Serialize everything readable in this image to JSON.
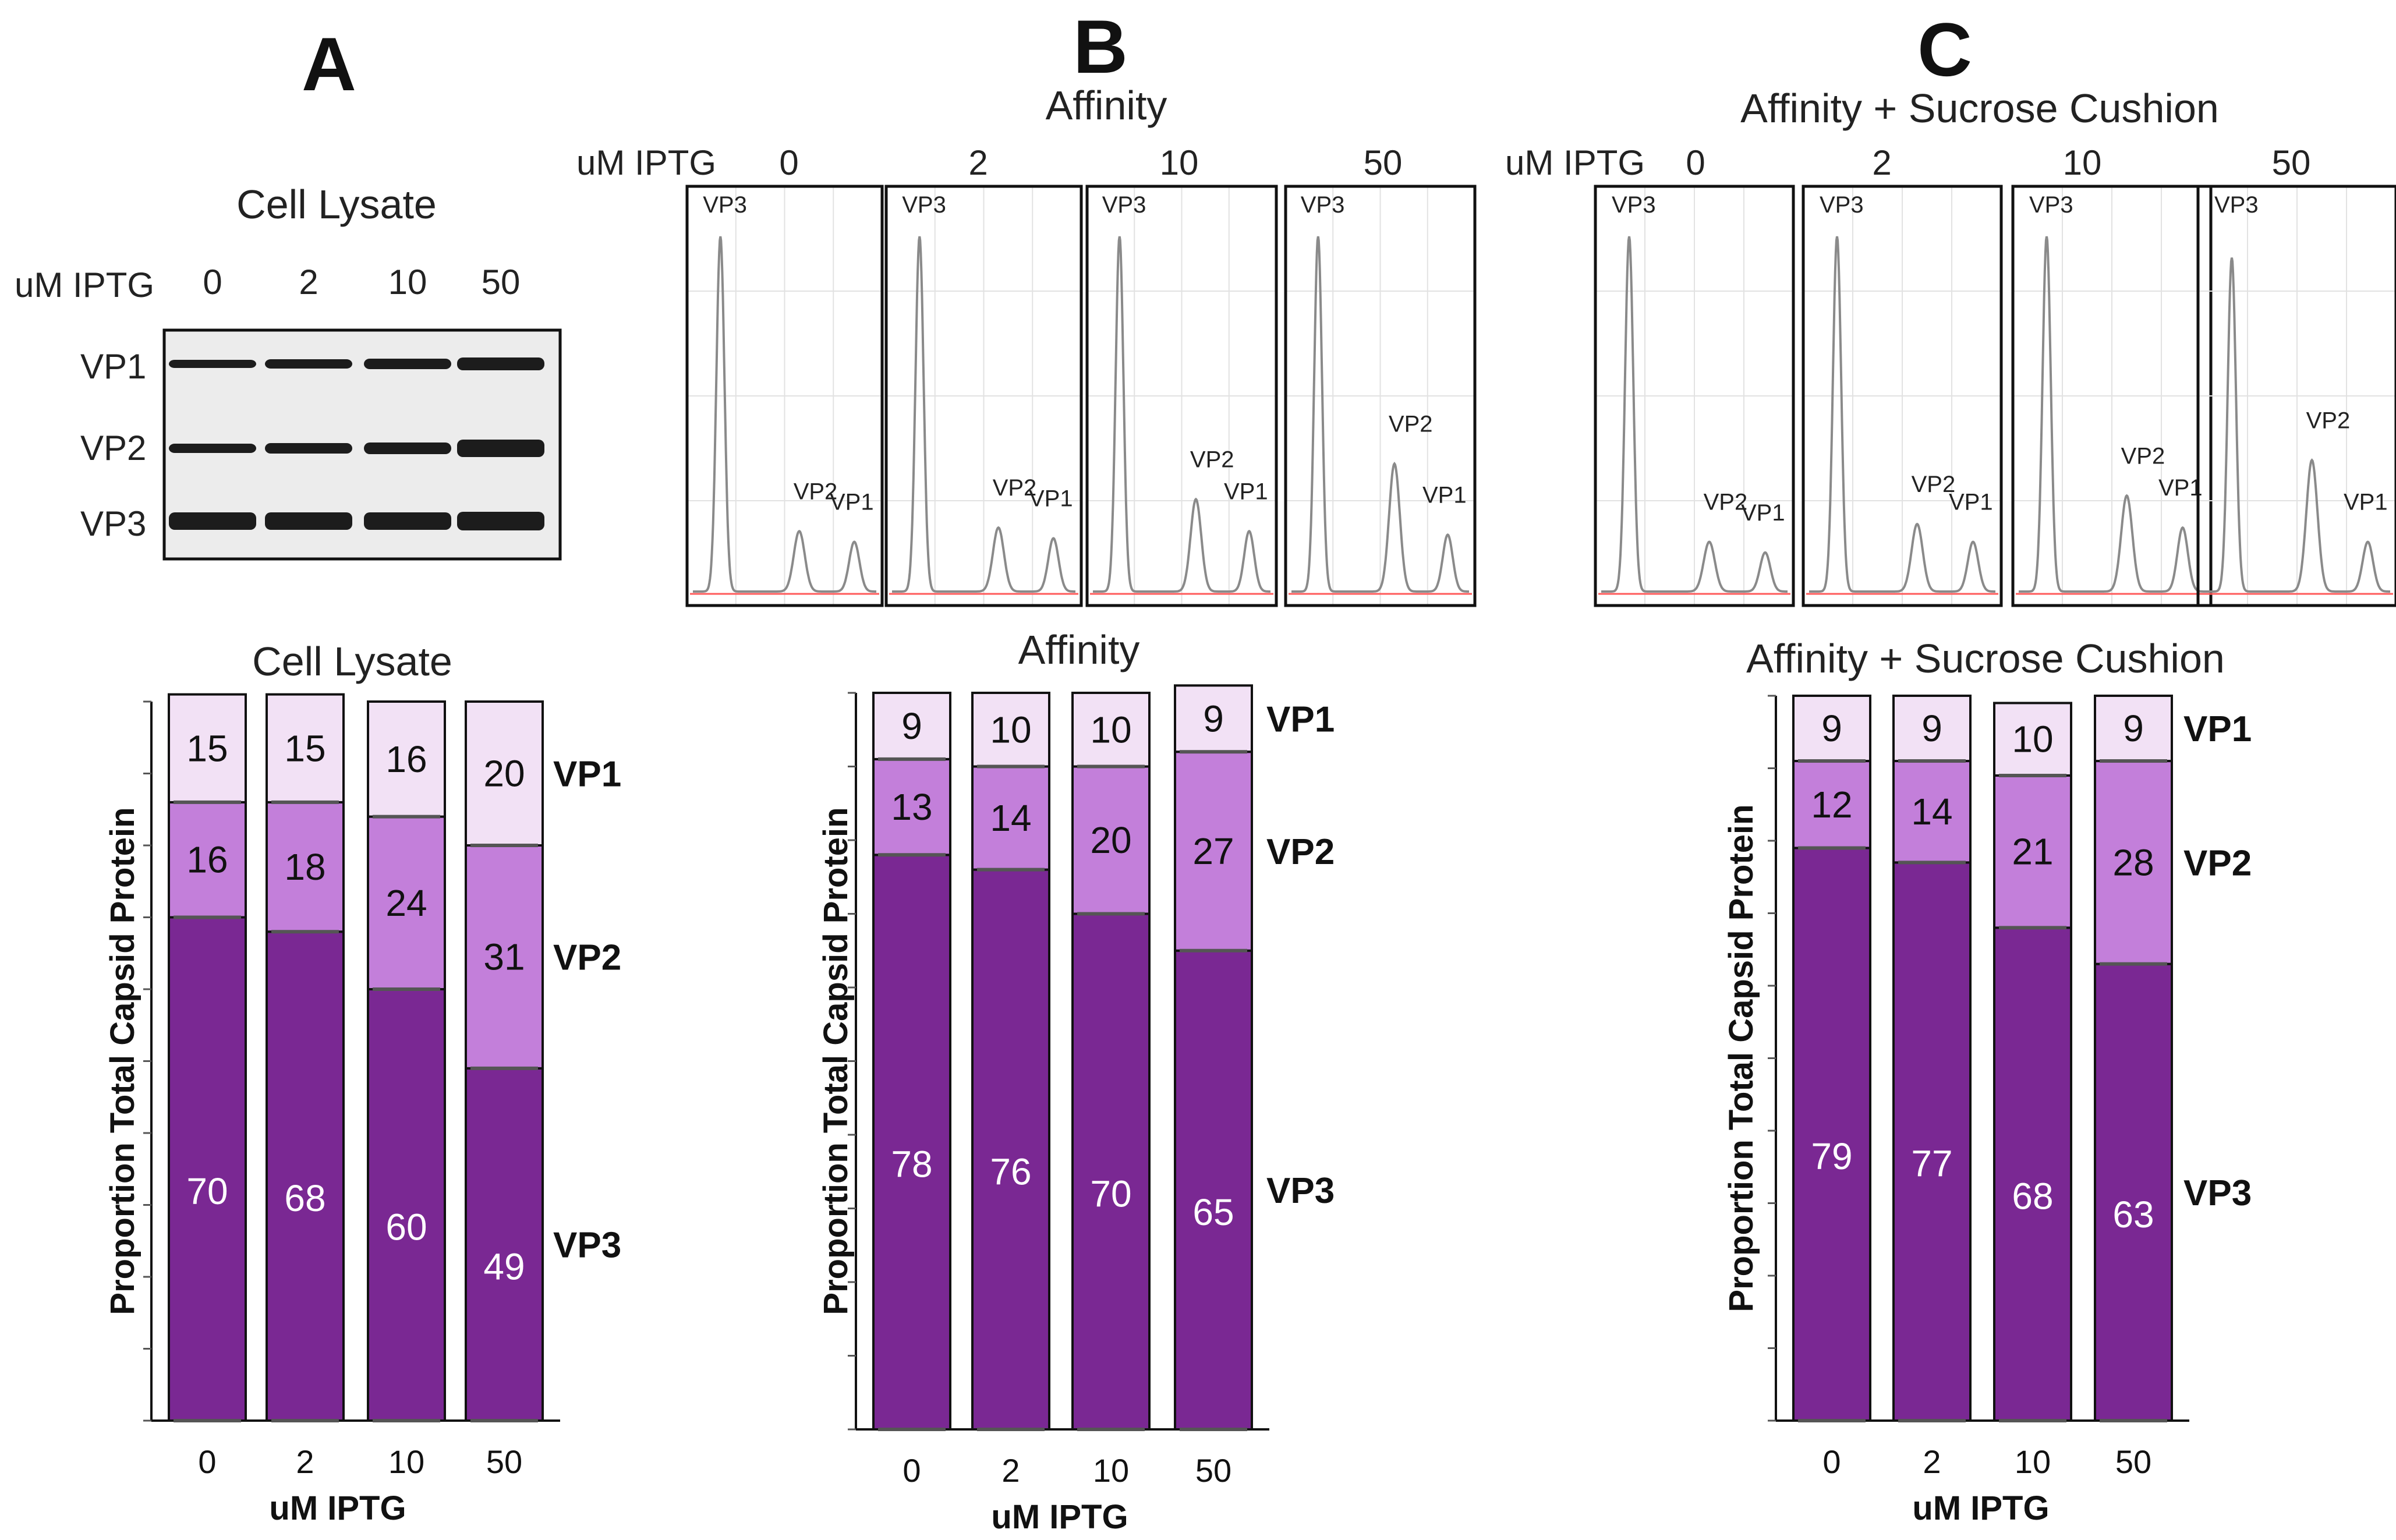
{
  "figure": {
    "panel_letters": [
      "A",
      "B",
      "C"
    ],
    "colors": {
      "vp1": "#f2e1f5",
      "vp2": "#c37fda",
      "vp3": "#7a2893",
      "trace": "#8a8a8a",
      "baseline": "#ff5a5a"
    }
  },
  "gel": {
    "title": "Cell Lysate",
    "ipt_label": "uM IPTG",
    "lanes": [
      "0",
      "2",
      "10",
      "50"
    ],
    "bands": [
      "VP1",
      "VP2",
      "VP3"
    ]
  },
  "chromatograms": [
    {
      "title": "Affinity",
      "ipt_label": "uM IPTG",
      "conditions": [
        {
          "iptg": "0",
          "peaks": {
            "VP3": 1.0,
            "VP2": 0.17,
            "VP1": 0.14
          },
          "labels": [
            "VP3",
            "VP2",
            "VP1"
          ]
        },
        {
          "iptg": "2",
          "peaks": {
            "VP3": 1.0,
            "VP2": 0.18,
            "VP1": 0.15
          },
          "labels": [
            "VP3",
            "VP2",
            "VP1"
          ]
        },
        {
          "iptg": "10",
          "peaks": {
            "VP3": 1.0,
            "VP2": 0.26,
            "VP1": 0.17
          },
          "labels": [
            "VP3",
            "VP2",
            "VP1"
          ]
        },
        {
          "iptg": "50",
          "peaks": {
            "VP3": 1.0,
            "VP2": 0.36,
            "VP1": 0.16
          },
          "labels": [
            "VP3",
            "VP2",
            "VP1"
          ]
        }
      ]
    },
    {
      "title": "Affinity + Sucrose Cushion",
      "ipt_label": "uM IPTG",
      "conditions": [
        {
          "iptg": "0",
          "peaks": {
            "VP3": 1.0,
            "VP2": 0.14,
            "VP1": 0.11
          },
          "labels": [
            "VP3",
            "VP2",
            "VP1"
          ]
        },
        {
          "iptg": "2",
          "peaks": {
            "VP3": 1.0,
            "VP2": 0.19,
            "VP1": 0.14
          },
          "labels": [
            "VP3",
            "VP2",
            "VP1"
          ]
        },
        {
          "iptg": "10",
          "peaks": {
            "VP3": 1.0,
            "VP2": 0.27,
            "VP1": 0.18
          },
          "labels": [
            "VP3",
            "VP2",
            "VP1"
          ]
        },
        {
          "iptg": "50",
          "peaks": {
            "VP3": 0.94,
            "VP2": 0.37,
            "VP1": 0.14
          },
          "labels": [
            "VP3",
            "VP2",
            "VP1"
          ]
        }
      ]
    }
  ],
  "chart_data": [
    {
      "type": "bar",
      "stacked": true,
      "title": "Cell Lysate",
      "xlabel": "uM IPTG",
      "ylabel": "Proportion Total Capsid Protein",
      "categories": [
        "0",
        "2",
        "10",
        "50"
      ],
      "ylim": [
        0,
        100
      ],
      "series": [
        {
          "name": "VP3",
          "values": [
            70,
            68,
            60,
            49
          ]
        },
        {
          "name": "VP2",
          "values": [
            16,
            18,
            24,
            31
          ]
        },
        {
          "name": "VP1",
          "values": [
            15,
            15,
            16,
            20
          ]
        }
      ]
    },
    {
      "type": "bar",
      "stacked": true,
      "title": "Affinity",
      "xlabel": "uM IPTG",
      "ylabel": "Proportion Total Capsid Protein",
      "categories": [
        "0",
        "2",
        "10",
        "50"
      ],
      "ylim": [
        0,
        100
      ],
      "series": [
        {
          "name": "VP3",
          "values": [
            78,
            76,
            70,
            65
          ]
        },
        {
          "name": "VP2",
          "values": [
            13,
            14,
            20,
            27
          ]
        },
        {
          "name": "VP1",
          "values": [
            9,
            10,
            10,
            9
          ]
        }
      ]
    },
    {
      "type": "bar",
      "stacked": true,
      "title": "Affinity + Sucrose Cushion",
      "xlabel": "uM IPTG",
      "ylabel": "Proportion Total Capsid Protein",
      "categories": [
        "0",
        "2",
        "10",
        "50"
      ],
      "ylim": [
        0,
        100
      ],
      "series": [
        {
          "name": "VP3",
          "values": [
            79,
            77,
            68,
            63
          ]
        },
        {
          "name": "VP2",
          "values": [
            12,
            14,
            21,
            28
          ]
        },
        {
          "name": "VP1",
          "values": [
            9,
            9,
            10,
            9
          ]
        }
      ]
    }
  ]
}
